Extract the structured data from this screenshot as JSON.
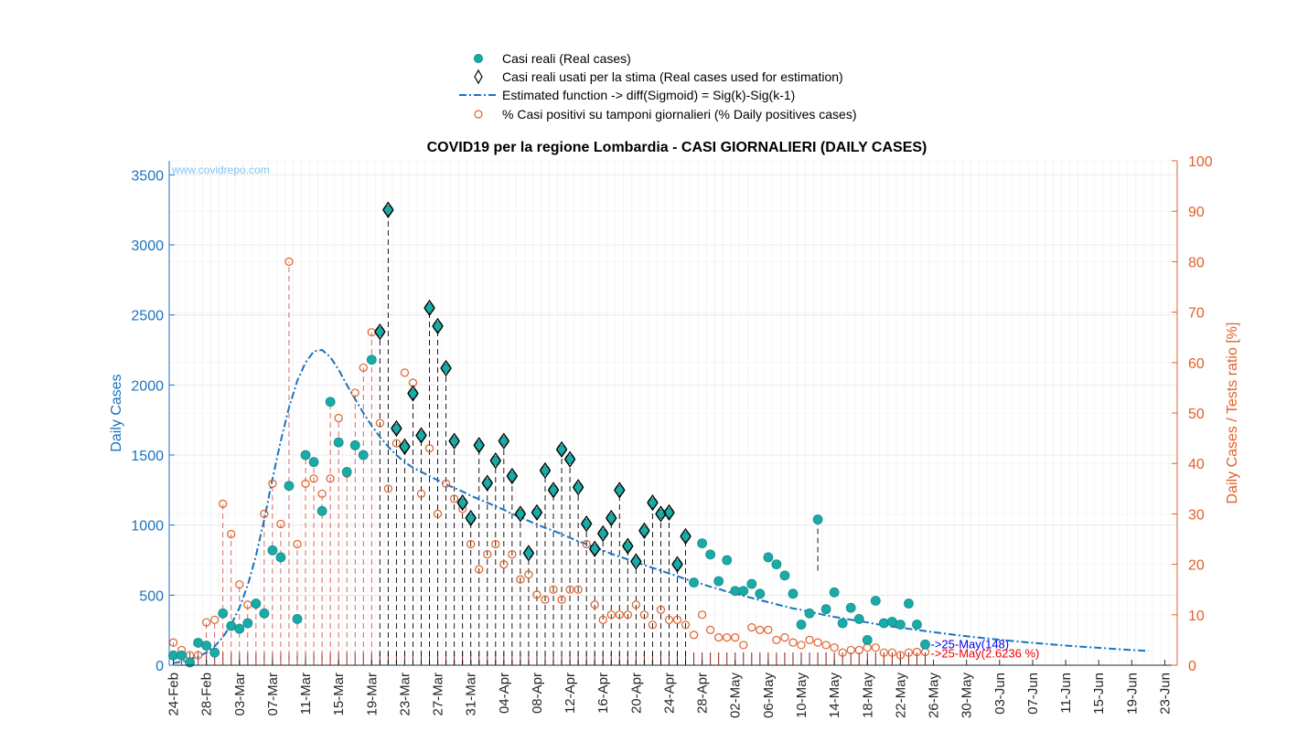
{
  "chart_data": {
    "type": "scatter",
    "title": "COVID19 per la regione Lombardia - CASI GIORNALIERI (DAILY CASES)",
    "ylabel": "Daily Cases",
    "ylabel_right": "Daily Cases / Tests ratio [%]",
    "watermark": "www.covidrepo.com",
    "ylim": [
      0,
      3600
    ],
    "ylim_right": [
      0,
      100
    ],
    "yticks": [
      "0",
      "500",
      "1000",
      "1500",
      "2000",
      "2500",
      "3000",
      "3500"
    ],
    "yticks_right": [
      "0",
      "10",
      "20",
      "30",
      "40",
      "50",
      "60",
      "70",
      "80",
      "90",
      "100"
    ],
    "grid": true,
    "legend_position": "top",
    "start_date": "24-Feb",
    "total_days": 122,
    "x_tick_labels": [
      "24-Feb",
      "28-Feb",
      "03-Mar",
      "07-Mar",
      "11-Mar",
      "15-Mar",
      "19-Mar",
      "23-Mar",
      "27-Mar",
      "31-Mar",
      "04-Apr",
      "08-Apr",
      "12-Apr",
      "16-Apr",
      "20-Apr",
      "24-Apr",
      "28-Apr",
      "02-May",
      "06-May",
      "10-May",
      "14-May",
      "18-May",
      "22-May",
      "26-May",
      "30-May",
      "03-Jun",
      "07-Jun",
      "11-Jun",
      "15-Jun",
      "19-Jun",
      "23-Jun"
    ],
    "legend": [
      {
        "label": "Casi reali (Real cases)",
        "marker": "filled-circle",
        "color": "#1aaba8"
      },
      {
        "label": "Casi reali usati per la stima (Real cases used for estimation)",
        "marker": "diamond",
        "color": "#000000"
      },
      {
        "label": "Estimated function -> diff(Sigmoid) = Sig(k)-Sig(k-1)",
        "marker": "dash-dot-line",
        "color": "#1a73c0"
      },
      {
        "label": "% Casi positivi su tamponi giornalieri (% Daily positives cases)",
        "marker": "open-circle",
        "color": "#e0602a"
      }
    ],
    "series": [
      {
        "name": "Casi reali (Real cases)",
        "color": "#1aaba8",
        "values": [
          70,
          70,
          20,
          160,
          140,
          90,
          370,
          280,
          260,
          300,
          440,
          370,
          820,
          770,
          1280,
          330,
          1500,
          1450,
          1100,
          1880,
          1590,
          1380,
          1570,
          1500,
          2180,
          2380,
          3250,
          1690,
          1560,
          1940,
          1640,
          2550,
          2420,
          2120,
          1600,
          1160,
          1050,
          1570,
          1300,
          1460,
          1600,
          1350,
          1080,
          800,
          1090,
          1390,
          1250,
          1540,
          1470,
          1270,
          1010,
          830,
          940,
          1050,
          1250,
          850,
          740,
          960,
          1160,
          1080,
          1090,
          720,
          920,
          590,
          870,
          790,
          600,
          750,
          530,
          530,
          580,
          510,
          770,
          720,
          640,
          510,
          290,
          370,
          1040,
          400,
          520,
          300,
          410,
          330,
          180,
          460,
          300,
          310,
          290,
          440,
          290,
          148
        ]
      },
      {
        "name": "Casi reali usati per la stima (Real cases used for estimation)",
        "color": "#000000",
        "start_index": 25,
        "values": [
          2380,
          3250,
          1690,
          1560,
          1940,
          1640,
          2550,
          2420,
          2120,
          1600,
          1160,
          1050,
          1570,
          1300,
          1460,
          1600,
          1350,
          1080,
          800,
          1090,
          1390,
          1250,
          1540,
          1470,
          1270,
          1010,
          830,
          940,
          1050,
          1250,
          850,
          740,
          960,
          1160,
          1080,
          1090,
          720,
          920
        ]
      },
      {
        "name": "Estimated function -> diff(Sigmoid) = Sig(k)-Sig(k-1)",
        "color": "#1a73c0",
        "values": [
          15,
          25,
          40,
          60,
          90,
          135,
          200,
          290,
          410,
          570,
          780,
          1040,
          1330,
          1600,
          1840,
          2030,
          2160,
          2240,
          2250,
          2200,
          2110,
          2000,
          1900,
          1800,
          1710,
          1630,
          1560,
          1500,
          1450,
          1410,
          1380,
          1350,
          1320,
          1290,
          1265,
          1240,
          1210,
          1185,
          1160,
          1135,
          1110,
          1080,
          1055,
          1030,
          1005,
          980,
          960,
          935,
          910,
          885,
          865,
          840,
          820,
          795,
          775,
          755,
          735,
          715,
          695,
          675,
          655,
          635,
          615,
          595,
          580,
          560,
          545,
          525,
          510,
          495,
          480,
          465,
          450,
          435,
          420,
          405,
          395,
          380,
          370,
          355,
          345,
          335,
          325,
          315,
          305,
          295,
          285,
          275,
          268,
          260,
          252,
          244,
          236,
          228,
          221,
          214,
          207,
          200,
          194,
          188,
          182,
          176,
          170,
          165,
          160,
          155,
          150,
          145,
          140,
          136,
          132,
          128,
          124,
          120,
          116,
          112,
          108,
          105,
          102
        ]
      },
      {
        "name": "% Casi positivi su tamponi giornalieri (% Daily positives cases)",
        "color": "#e0602a",
        "axis": "right",
        "values": [
          4.5,
          3,
          2,
          2,
          8.5,
          9,
          32,
          26,
          16,
          12,
          12,
          30,
          36,
          28,
          80,
          24,
          36,
          37,
          34,
          37,
          49,
          38,
          54,
          59,
          66,
          48,
          35,
          44,
          58,
          56,
          34,
          43,
          30,
          36,
          33,
          31,
          24,
          19,
          22,
          24,
          20,
          22,
          17,
          18,
          14,
          13,
          15,
          13,
          15,
          15,
          24,
          12,
          9,
          10,
          10,
          10,
          12,
          10,
          8,
          11,
          9,
          9,
          8,
          6,
          10,
          7,
          5.5,
          5.5,
          5.5,
          4,
          7.5,
          7,
          7,
          5,
          5.5,
          4.5,
          4,
          5,
          4.5,
          4,
          3.5,
          2.5,
          3,
          3,
          3.5,
          3.5,
          2.5,
          2.5,
          2,
          2.5,
          2.6236,
          2.6236
        ]
      }
    ],
    "annotations": [
      {
        "text": "->25-May(148)",
        "color": "#0000ee"
      },
      {
        "text": "->25-May(2.6236 %)",
        "color": "#ee0000"
      }
    ]
  }
}
